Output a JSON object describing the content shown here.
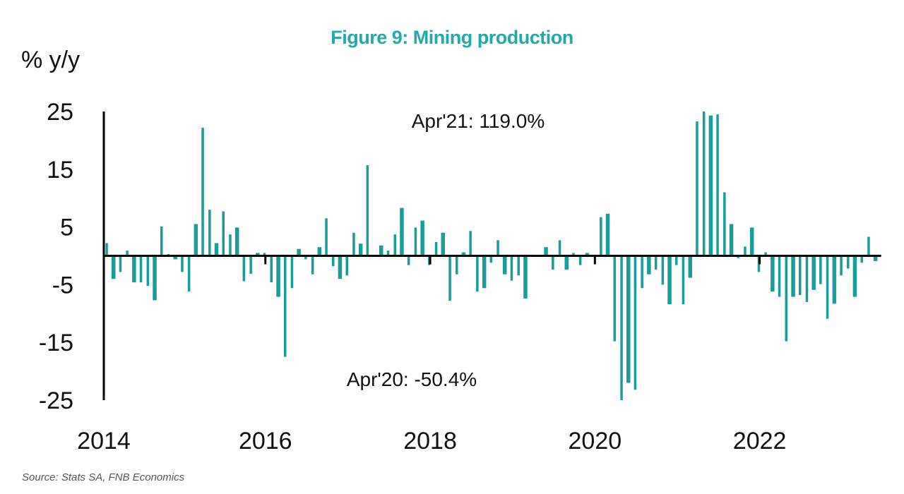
{
  "chart_data": {
    "type": "bar",
    "title": "Figure 9: Mining production",
    "ylabel": "% y/y",
    "xlabel": "",
    "source": "Source: Stats SA, FNB Economics",
    "ylim": [
      -25,
      25
    ],
    "yticks": [
      25,
      15,
      5,
      -5,
      -15,
      -25
    ],
    "xticks": [
      "2014",
      "2016",
      "2018",
      "2020",
      "2022"
    ],
    "start": "2014-01",
    "frequency": "monthly",
    "colors": {
      "bar": "#1a9c98",
      "title": "#20aaa9",
      "axis": "#000000"
    },
    "annotations": [
      {
        "text": "Apr'21: 119.0%",
        "period": "2021-04",
        "value": 119.0,
        "position": "top"
      },
      {
        "text": "Apr'20: -50.4%",
        "period": "2020-04",
        "value": -50.4,
        "position": "bottom"
      }
    ],
    "series": [
      {
        "name": "Mining production % y/y",
        "values": [
          2.2,
          -4.0,
          -2.8,
          0.9,
          -4.6,
          -4.6,
          -5.2,
          -7.7,
          5.1,
          0.3,
          -0.6,
          -2.8,
          -6.2,
          5.5,
          22.2,
          8.0,
          2.2,
          7.7,
          3.7,
          4.9,
          -4.4,
          -3.1,
          0.5,
          0.5,
          -4.6,
          -7.1,
          -17.5,
          -5.6,
          1.2,
          -0.6,
          -3.2,
          1.5,
          6.5,
          -1.8,
          -4.0,
          -3.4,
          4.0,
          2.1,
          15.7,
          0.0,
          1.8,
          0.9,
          3.7,
          8.3,
          -1.6,
          4.9,
          6.1,
          -1.6,
          2.4,
          4.0,
          -7.8,
          -3.2,
          0.6,
          4.3,
          -6.2,
          -5.6,
          -1.2,
          2.7,
          -3.2,
          -4.3,
          -3.4,
          -7.4,
          0.2,
          -0.2,
          1.5,
          -2.4,
          2.7,
          -2.4,
          0.5,
          -1.6,
          0.5,
          0.2,
          6.7,
          7.3,
          -14.8,
          -50.4,
          -22.0,
          -23.2,
          -5.6,
          -3.2,
          -2.4,
          -5.0,
          -8.4,
          -1.6,
          -8.4,
          -3.8,
          23.3,
          119.0,
          24.3,
          24.5,
          11.0,
          5.5,
          -0.4,
          1.6,
          4.9,
          -2.8,
          0.6,
          -6.2,
          -7.1,
          -14.8,
          -7.1,
          -6.8,
          -8.0,
          -5.9,
          -4.9,
          -10.9,
          -8.3,
          -3.4,
          -2.2,
          -7.1,
          -1.2,
          3.3,
          -0.9
        ]
      }
    ]
  }
}
